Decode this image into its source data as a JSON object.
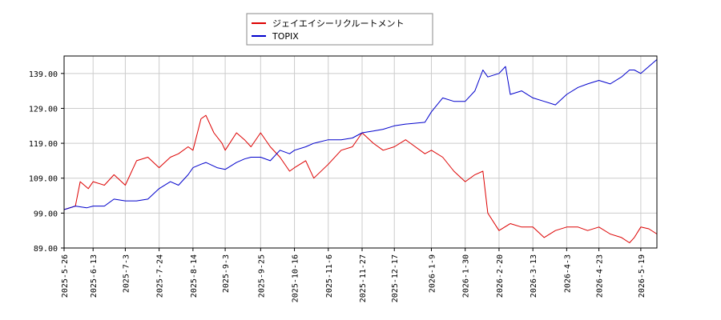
{
  "chart_data": {
    "type": "line",
    "title": "",
    "xlabel": "",
    "ylabel": "",
    "ylim": [
      89.0,
      144.0
    ],
    "yticks": [
      89.0,
      99.0,
      109.0,
      119.0,
      129.0,
      139.0
    ],
    "ytick_labels": [
      "89.00",
      "99.00",
      "109.00",
      "119.00",
      "129.00",
      "139.00"
    ],
    "x_range": [
      "2025-5-26",
      "2026-5-29"
    ],
    "xticks": [
      "2025-5-26",
      "2025-6-13",
      "2025-7-3",
      "2025-7-24",
      "2025-8-14",
      "2025-9-3",
      "2025-9-25",
      "2025-10-16",
      "2025-11-6",
      "2025-11-27",
      "2025-12-17",
      "2026-1-9",
      "2026-1-30",
      "2026-2-20",
      "2026-3-13",
      "2026-4-3",
      "2026-4-23",
      "2026-5-19"
    ],
    "grid": true,
    "legend_position": "top",
    "series": [
      {
        "name": "ジェイエイシーリクルートメント",
        "color": "#dd0000",
        "points": [
          [
            "2025-5-26",
            100.0
          ],
          [
            "2025-6-2",
            101.0
          ],
          [
            "2025-6-5",
            108.0
          ],
          [
            "2025-6-10",
            106.0
          ],
          [
            "2025-6-13",
            108.0
          ],
          [
            "2025-6-20",
            107.0
          ],
          [
            "2025-6-26",
            110.0
          ],
          [
            "2025-7-3",
            107.0
          ],
          [
            "2025-7-10",
            114.0
          ],
          [
            "2025-7-17",
            115.0
          ],
          [
            "2025-7-24",
            112.0
          ],
          [
            "2025-7-31",
            115.0
          ],
          [
            "2025-8-5",
            116.0
          ],
          [
            "2025-8-11",
            118.0
          ],
          [
            "2025-8-14",
            117.0
          ],
          [
            "2025-8-19",
            126.0
          ],
          [
            "2025-8-22",
            127.0
          ],
          [
            "2025-8-27",
            122.0
          ],
          [
            "2025-9-1",
            119.0
          ],
          [
            "2025-9-3",
            117.0
          ],
          [
            "2025-9-10",
            122.0
          ],
          [
            "2025-9-15",
            120.0
          ],
          [
            "2025-9-19",
            118.0
          ],
          [
            "2025-9-25",
            122.0
          ],
          [
            "2025-10-1",
            118.0
          ],
          [
            "2025-10-7",
            115.0
          ],
          [
            "2025-10-13",
            111.0
          ],
          [
            "2025-10-16",
            112.0
          ],
          [
            "2025-10-23",
            114.0
          ],
          [
            "2025-10-28",
            109.0
          ],
          [
            "2025-11-6",
            113.0
          ],
          [
            "2025-11-14",
            117.0
          ],
          [
            "2025-11-21",
            118.0
          ],
          [
            "2025-11-27",
            122.0
          ],
          [
            "2025-12-4",
            119.0
          ],
          [
            "2025-12-10",
            117.0
          ],
          [
            "2025-12-17",
            118.0
          ],
          [
            "2025-12-24",
            120.0
          ],
          [
            "2026-1-5",
            116.0
          ],
          [
            "2026-1-9",
            117.0
          ],
          [
            "2026-1-16",
            115.0
          ],
          [
            "2026-1-23",
            111.0
          ],
          [
            "2026-1-30",
            108.0
          ],
          [
            "2026-2-5",
            110.0
          ],
          [
            "2026-2-10",
            111.0
          ],
          [
            "2026-2-13",
            99.0
          ],
          [
            "2026-2-20",
            94.0
          ],
          [
            "2026-2-27",
            96.0
          ],
          [
            "2026-3-6",
            95.0
          ],
          [
            "2026-3-13",
            95.0
          ],
          [
            "2026-3-20",
            92.0
          ],
          [
            "2026-3-27",
            94.0
          ],
          [
            "2026-4-3",
            95.0
          ],
          [
            "2026-4-10",
            95.0
          ],
          [
            "2026-4-16",
            94.0
          ],
          [
            "2026-4-23",
            95.0
          ],
          [
            "2026-4-30",
            93.0
          ],
          [
            "2026-5-7",
            92.0
          ],
          [
            "2026-5-12",
            90.5
          ],
          [
            "2026-5-15",
            92.0
          ],
          [
            "2026-5-19",
            95.0
          ],
          [
            "2026-5-24",
            94.5
          ],
          [
            "2026-5-29",
            93.0
          ]
        ]
      },
      {
        "name": "TOPIX",
        "color": "#0000cc",
        "points": [
          [
            "2025-5-26",
            100.0
          ],
          [
            "2025-6-2",
            101.0
          ],
          [
            "2025-6-9",
            100.5
          ],
          [
            "2025-6-13",
            101.0
          ],
          [
            "2025-6-20",
            101.0
          ],
          [
            "2025-6-26",
            103.0
          ],
          [
            "2025-7-3",
            102.5
          ],
          [
            "2025-7-10",
            102.5
          ],
          [
            "2025-7-17",
            103.0
          ],
          [
            "2025-7-24",
            106.0
          ],
          [
            "2025-7-31",
            108.0
          ],
          [
            "2025-8-5",
            107.0
          ],
          [
            "2025-8-11",
            110.0
          ],
          [
            "2025-8-14",
            112.0
          ],
          [
            "2025-8-19",
            113.0
          ],
          [
            "2025-8-22",
            113.5
          ],
          [
            "2025-8-29",
            112.0
          ],
          [
            "2025-9-3",
            111.5
          ],
          [
            "2025-9-10",
            113.5
          ],
          [
            "2025-9-15",
            114.5
          ],
          [
            "2025-9-19",
            115.0
          ],
          [
            "2025-9-25",
            115.0
          ],
          [
            "2025-10-1",
            114.0
          ],
          [
            "2025-10-7",
            117.0
          ],
          [
            "2025-10-13",
            116.0
          ],
          [
            "2025-10-16",
            117.0
          ],
          [
            "2025-10-23",
            118.0
          ],
          [
            "2025-10-28",
            119.0
          ],
          [
            "2025-11-6",
            120.0
          ],
          [
            "2025-11-14",
            120.0
          ],
          [
            "2025-11-21",
            120.5
          ],
          [
            "2025-11-27",
            122.0
          ],
          [
            "2025-12-4",
            122.5
          ],
          [
            "2025-12-10",
            123.0
          ],
          [
            "2025-12-17",
            124.0
          ],
          [
            "2025-12-24",
            124.5
          ],
          [
            "2026-1-5",
            125.0
          ],
          [
            "2026-1-9",
            128.0
          ],
          [
            "2026-1-16",
            132.0
          ],
          [
            "2026-1-23",
            131.0
          ],
          [
            "2026-1-30",
            131.0
          ],
          [
            "2026-2-5",
            134.0
          ],
          [
            "2026-2-10",
            140.0
          ],
          [
            "2026-2-13",
            138.0
          ],
          [
            "2026-2-20",
            139.0
          ],
          [
            "2026-2-24",
            141.0
          ],
          [
            "2026-2-27",
            133.0
          ],
          [
            "2026-3-6",
            134.0
          ],
          [
            "2026-3-13",
            132.0
          ],
          [
            "2026-3-20",
            131.0
          ],
          [
            "2026-3-27",
            130.0
          ],
          [
            "2026-4-3",
            133.0
          ],
          [
            "2026-4-10",
            135.0
          ],
          [
            "2026-4-16",
            136.0
          ],
          [
            "2026-4-23",
            137.0
          ],
          [
            "2026-4-30",
            136.0
          ],
          [
            "2026-5-7",
            138.0
          ],
          [
            "2026-5-12",
            140.0
          ],
          [
            "2026-5-15",
            140.0
          ],
          [
            "2026-5-19",
            139.0
          ],
          [
            "2026-5-24",
            141.0
          ],
          [
            "2026-5-29",
            143.0
          ]
        ]
      }
    ]
  }
}
